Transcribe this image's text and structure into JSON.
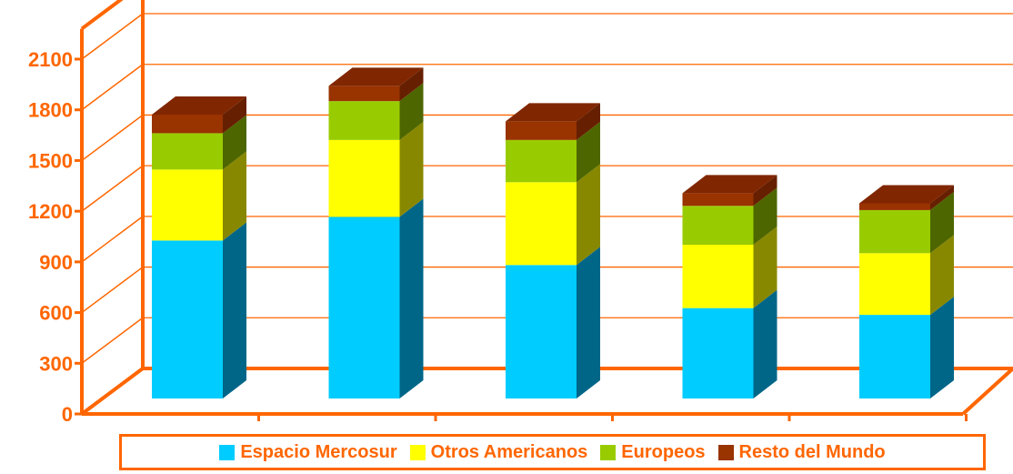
{
  "chart_data": {
    "type": "bar",
    "stacked": true,
    "three_d": true,
    "categories": [
      "",
      "",
      "",
      "",
      ""
    ],
    "series": [
      {
        "name": "Espacio Mercosur",
        "color": "#00ccff",
        "side_color": "#006688",
        "values": [
          935,
          1075,
          790,
          535,
          495
        ]
      },
      {
        "name": "Otros Americanos",
        "color": "#ffff00",
        "side_color": "#888800",
        "values": [
          420,
          455,
          490,
          375,
          365
        ]
      },
      {
        "name": "Europeos",
        "color": "#99cc00",
        "side_color": "#4d6600",
        "values": [
          215,
          230,
          250,
          230,
          255
        ]
      },
      {
        "name": "Resto del Mundo",
        "color": "#993300",
        "side_color": "#661f00",
        "top_color": "#802600",
        "values": [
          110,
          90,
          110,
          75,
          40
        ]
      }
    ],
    "y_ticks": [
      "0",
      "300",
      "600",
      "900",
      "1200",
      "1500",
      "1800",
      "2100"
    ],
    "ylim": [
      0,
      2100
    ],
    "grid": true,
    "legend_position": "bottom",
    "title": "",
    "xlabel": "",
    "ylabel": "",
    "colors": {
      "axis": "#ff6600",
      "grid": "#ff6600",
      "text": "#ff6600",
      "background": "#ffffff"
    }
  }
}
